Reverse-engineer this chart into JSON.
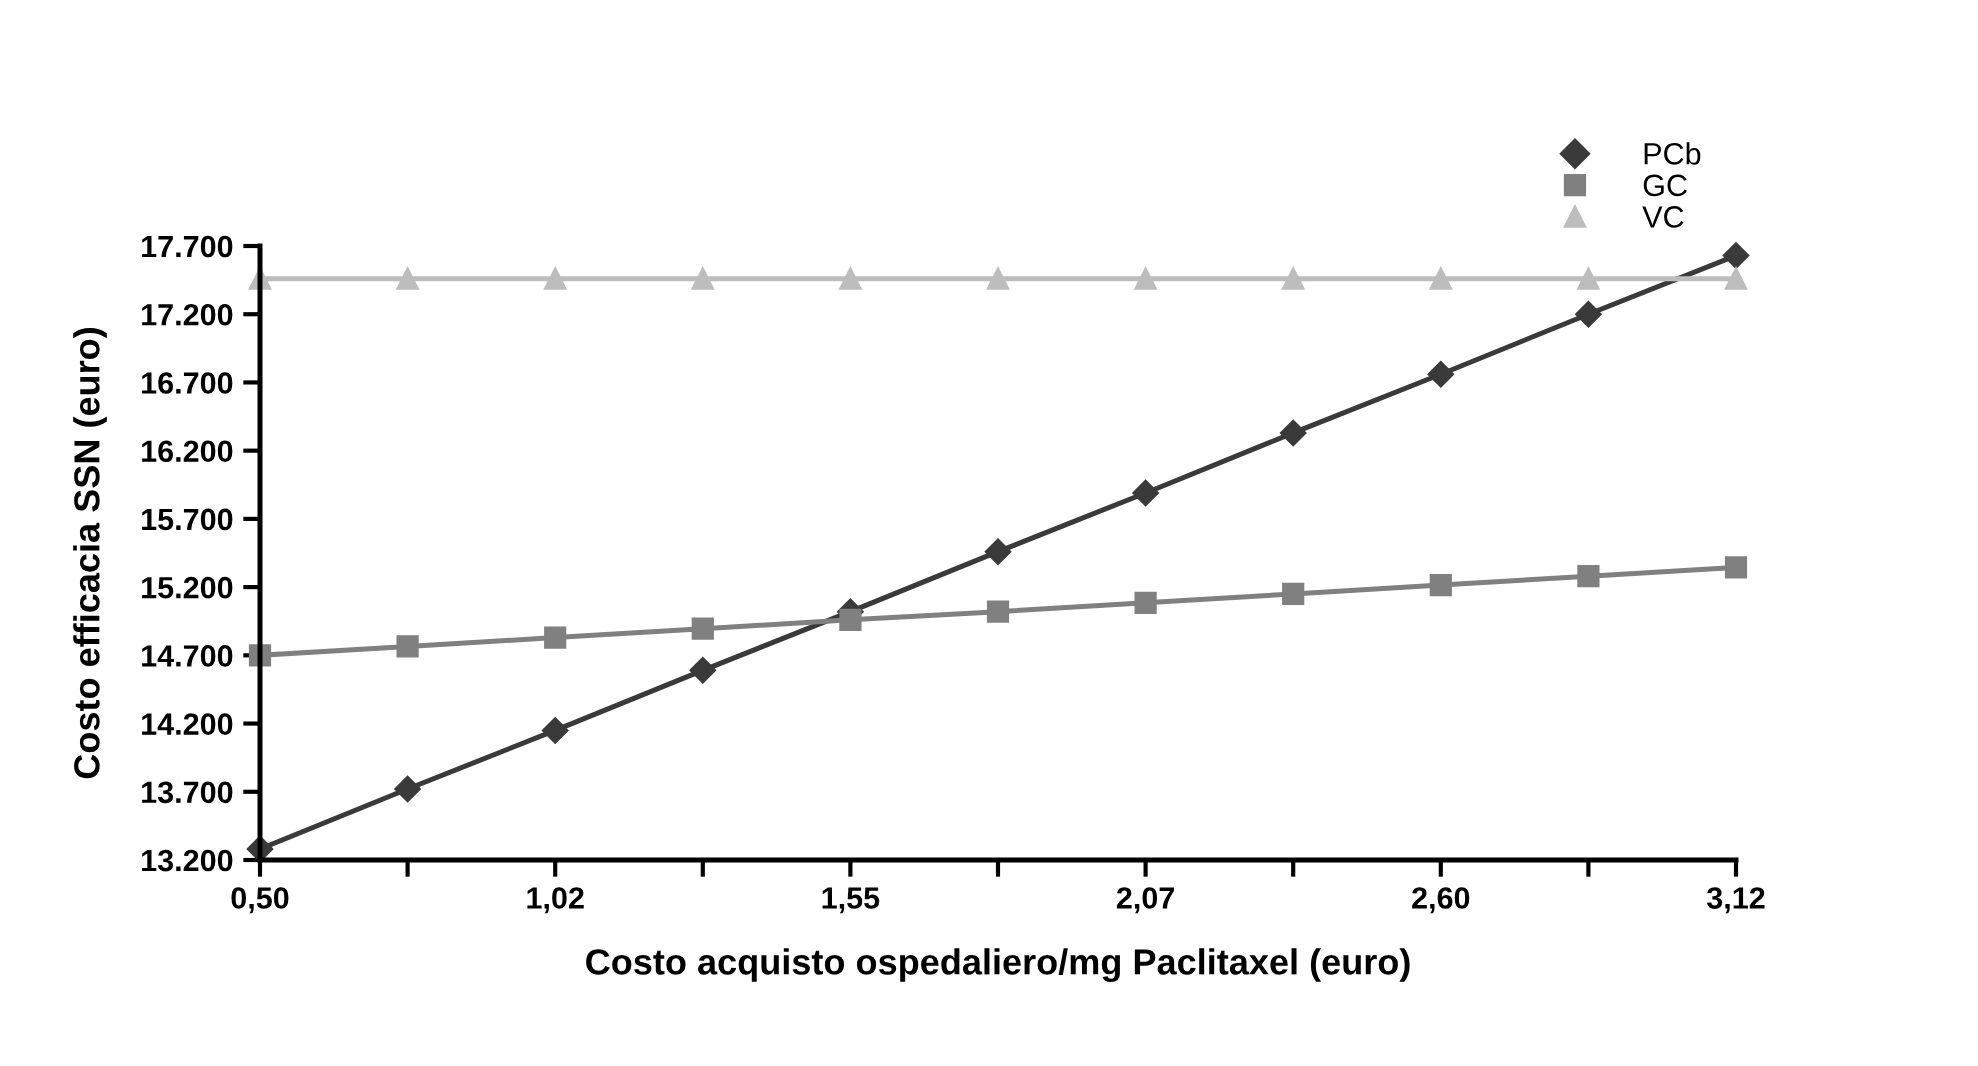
{
  "chart_data": {
    "type": "line",
    "xlabel": "Costo acquisto ospedaliero/mg Paclitaxel (euro)",
    "ylabel": "Costo efficacia SSN (euro)",
    "categories": [
      "0,50",
      null,
      "1,02",
      null,
      "1,55",
      null,
      "2,07",
      null,
      "2,60",
      null,
      "3,12"
    ],
    "series": [
      {
        "name": "PCb",
        "color": "#3a3a3a",
        "marker": "diamond",
        "values": [
          13280,
          13720,
          14150,
          14590,
          15020,
          15460,
          15890,
          16330,
          16760,
          17200,
          17630
        ]
      },
      {
        "name": "GC",
        "color": "#808080",
        "marker": "square",
        "values": [
          14700,
          14765,
          14830,
          14895,
          14960,
          15020,
          15085,
          15150,
          15215,
          15280,
          15345
        ]
      },
      {
        "name": "VC",
        "color": "#bdbdbd",
        "marker": "triangle",
        "values": [
          17460,
          17460,
          17460,
          17460,
          17460,
          17460,
          17460,
          17460,
          17460,
          17460,
          17460
        ]
      }
    ],
    "ylim": [
      13200,
      17700
    ],
    "yticks": [
      {
        "value": 13200,
        "label": "13.200"
      },
      {
        "value": 13700,
        "label": "13.700"
      },
      {
        "value": 14200,
        "label": "14.200"
      },
      {
        "value": 14700,
        "label": "14.700"
      },
      {
        "value": 15200,
        "label": "15.200"
      },
      {
        "value": 15700,
        "label": "15.700"
      },
      {
        "value": 16200,
        "label": "16.200"
      },
      {
        "value": 16700,
        "label": "16.700"
      },
      {
        "value": 17200,
        "label": "17.200"
      },
      {
        "value": 17700,
        "label": "17.700"
      }
    ],
    "legend": "top right",
    "grid": false,
    "line_style": "solid"
  }
}
